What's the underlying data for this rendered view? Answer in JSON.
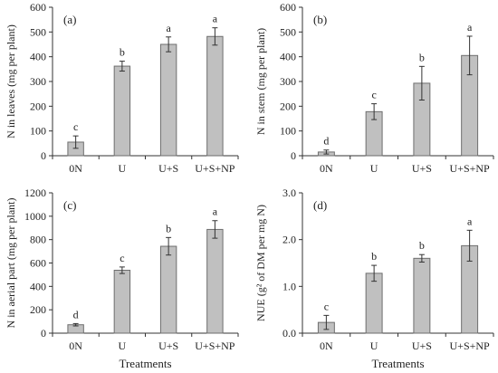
{
  "chart_data": [
    {
      "type": "bar",
      "panel_label": "(a)",
      "ylabel": "N in leaves (mg per plant)",
      "xlabel": "",
      "categories": [
        "0N",
        "U",
        "U+S",
        "U+S+NP"
      ],
      "values": [
        55,
        362,
        450,
        482
      ],
      "errors": [
        25,
        20,
        30,
        35
      ],
      "letters": [
        "c",
        "b",
        "a",
        "a"
      ],
      "ylim": [
        0,
        600
      ],
      "yticks": [
        "0",
        "100",
        "200",
        "300",
        "400",
        "500",
        "600"
      ],
      "legend": "none",
      "grid": false
    },
    {
      "type": "bar",
      "panel_label": "(b)",
      "ylabel": "N in stem (mg per plant)",
      "xlabel": "",
      "categories": [
        "0N",
        "U",
        "U+S",
        "U+S+NP"
      ],
      "values": [
        15,
        178,
        293,
        405
      ],
      "errors": [
        8,
        32,
        68,
        78
      ],
      "letters": [
        "d",
        "c",
        "b",
        "a"
      ],
      "ylim": [
        0,
        600
      ],
      "yticks": [
        "0",
        "100",
        "200",
        "300",
        "400",
        "500",
        "600"
      ],
      "legend": "none",
      "grid": false
    },
    {
      "type": "bar",
      "panel_label": "(c)",
      "ylabel": "N in aerial part (mg per plant)",
      "xlabel": "Treatments",
      "categories": [
        "0N",
        "U",
        "U+S",
        "U+S+NP"
      ],
      "values": [
        72,
        538,
        743,
        887
      ],
      "errors": [
        10,
        28,
        75,
        75
      ],
      "letters": [
        "d",
        "c",
        "b",
        "a"
      ],
      "ylim": [
        0,
        1200
      ],
      "yticks": [
        "0",
        "200",
        "400",
        "600",
        "800",
        "1000",
        "1200"
      ],
      "legend": "none",
      "grid": false
    },
    {
      "type": "bar",
      "panel_label": "(d)",
      "ylabel": "NUE (g² of DM per mg N)",
      "xlabel": "Treatments",
      "categories": [
        "0N",
        "U",
        "U+S",
        "U+S+NP"
      ],
      "values": [
        0.23,
        1.28,
        1.6,
        1.87
      ],
      "errors": [
        0.15,
        0.17,
        0.08,
        0.33
      ],
      "letters": [
        "c",
        "b",
        "b",
        "a"
      ],
      "ylim": [
        0,
        3.0
      ],
      "yticks": [
        "0.0",
        "1.0",
        "2.0",
        "3.0"
      ],
      "legend": "none",
      "grid": false
    }
  ],
  "colors": {
    "bar_fill": "#c0c0c0",
    "bar_stroke": "#6e6e6e",
    "axis": "#333333",
    "text": "#222222"
  }
}
